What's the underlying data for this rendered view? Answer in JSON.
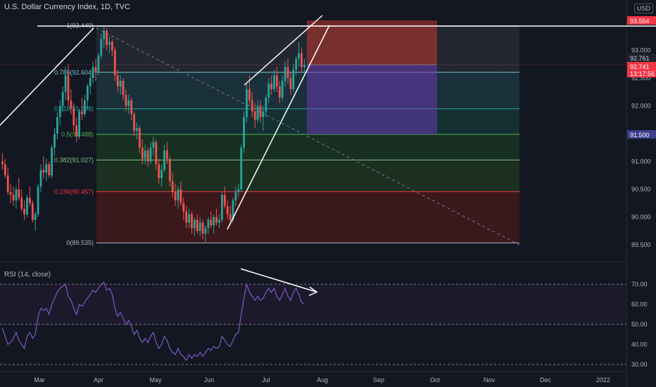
{
  "header": {
    "title": "U.S. Dollar Currency Index, 1D, TVC",
    "currency": "USD"
  },
  "rsi": {
    "title": "RSI (14, close)",
    "levels": [
      "70.00",
      "60.00",
      "50.00",
      "40.00",
      "30.00"
    ]
  },
  "price_axis": {
    "ticks": [
      "93.000",
      "92.500",
      "92.000",
      "91.500",
      "91.000",
      "90.500",
      "90.000",
      "89.500"
    ],
    "labels": {
      "top": "93.554",
      "upper": "92.761",
      "last": "92.741",
      "countdown": "13:17:56",
      "mid": "91.500"
    }
  },
  "time_axis": {
    "labels": [
      "Mar",
      "Apr",
      "May",
      "Jun",
      "Jul",
      "Aug",
      "Sep",
      "Oct",
      "Nov",
      "Dec",
      "2022"
    ]
  },
  "fib_levels": [
    {
      "ratio": "1",
      "price": "93.440",
      "label": "1(93.440)",
      "value": 93.44,
      "color": "#b2b5be"
    },
    {
      "ratio": "0.786",
      "price": "92.604",
      "label": "0.786(92.604)",
      "value": 92.604,
      "color": "#7ec4cf"
    },
    {
      "ratio": "0.618",
      "price": "91.948",
      "label": "0.618(91.948)",
      "value": 91.948,
      "color": "#26a69a"
    },
    {
      "ratio": "0.5",
      "price": "91.488",
      "label": "0.5(91.488)",
      "value": 91.488,
      "color": "#4caf50"
    },
    {
      "ratio": "0.382",
      "price": "91.027",
      "label": "0.382(91.027)",
      "value": 91.027,
      "color": "#81c784"
    },
    {
      "ratio": "0.236",
      "price": "90.457",
      "label": "0.236(90.457)",
      "value": 90.457,
      "color": "#f23645"
    },
    {
      "ratio": "0",
      "price": "89.535",
      "label": "0(89.535)",
      "value": 89.535,
      "color": "#b2b5be"
    }
  ],
  "colors": {
    "background": "#131722",
    "up": "#26a69a",
    "down": "#ef5350",
    "stop_zone": "#c0392b",
    "target_zone": "#6a3ab2",
    "rsi_line": "#7e57c2",
    "rsi_band": "#1e1a2e"
  },
  "chart_data": {
    "type": "candlestick",
    "symbol": "U.S. Dollar Currency Index",
    "interval": "1D",
    "ylim": [
      89.3,
      93.75
    ],
    "ohlc": [
      [
        91.0,
        91.15,
        90.85,
        90.95
      ],
      [
        90.95,
        91.05,
        90.7,
        90.75
      ],
      [
        90.75,
        90.9,
        90.4,
        90.45
      ],
      [
        90.45,
        90.6,
        90.25,
        90.4
      ],
      [
        90.4,
        90.55,
        90.2,
        90.3
      ],
      [
        90.3,
        90.55,
        90.15,
        90.5
      ],
      [
        90.5,
        90.7,
        90.3,
        90.35
      ],
      [
        90.35,
        90.5,
        90.1,
        90.15
      ],
      [
        90.15,
        90.3,
        89.95,
        90.05
      ],
      [
        90.05,
        90.4,
        90.0,
        90.35
      ],
      [
        90.35,
        90.55,
        90.2,
        90.25
      ],
      [
        90.25,
        90.3,
        89.9,
        89.95
      ],
      [
        89.95,
        90.1,
        89.75,
        90.05
      ],
      [
        90.05,
        90.6,
        90.0,
        90.55
      ],
      [
        90.55,
        90.95,
        90.45,
        90.85
      ],
      [
        90.85,
        91.1,
        90.7,
        90.8
      ],
      [
        90.8,
        91.05,
        90.65,
        90.95
      ],
      [
        90.95,
        91.0,
        90.7,
        90.75
      ],
      [
        90.75,
        91.3,
        90.7,
        91.25
      ],
      [
        91.25,
        91.6,
        91.1,
        91.5
      ],
      [
        91.5,
        91.9,
        91.4,
        91.8
      ],
      [
        91.8,
        92.1,
        91.65,
        92.0
      ],
      [
        92.0,
        92.35,
        91.9,
        92.25
      ],
      [
        92.25,
        92.7,
        92.1,
        92.55
      ],
      [
        92.55,
        92.75,
        92.0,
        92.1
      ],
      [
        92.1,
        92.3,
        91.85,
        91.95
      ],
      [
        91.95,
        92.05,
        91.55,
        91.65
      ],
      [
        91.65,
        91.8,
        91.35,
        91.45
      ],
      [
        91.45,
        91.95,
        91.4,
        91.9
      ],
      [
        91.9,
        92.15,
        91.75,
        91.85
      ],
      [
        91.85,
        92.2,
        91.8,
        92.1
      ],
      [
        92.1,
        92.4,
        91.95,
        92.35
      ],
      [
        92.35,
        92.6,
        92.2,
        92.5
      ],
      [
        92.5,
        92.8,
        92.4,
        92.7
      ],
      [
        92.7,
        92.85,
        92.45,
        92.6
      ],
      [
        92.6,
        92.95,
        92.55,
        92.9
      ],
      [
        92.9,
        93.3,
        92.85,
        93.2
      ],
      [
        93.2,
        93.44,
        93.05,
        93.35
      ],
      [
        93.35,
        93.4,
        93.0,
        93.1
      ],
      [
        93.1,
        93.25,
        92.95,
        93.15
      ],
      [
        93.15,
        93.2,
        92.9,
        93.0
      ],
      [
        93.0,
        93.05,
        92.45,
        92.55
      ],
      [
        92.55,
        92.65,
        92.25,
        92.35
      ],
      [
        92.35,
        92.55,
        92.2,
        92.45
      ],
      [
        92.45,
        92.5,
        92.1,
        92.2
      ],
      [
        92.2,
        92.3,
        91.9,
        92.0
      ],
      [
        92.0,
        92.2,
        91.85,
        92.1
      ],
      [
        92.1,
        92.15,
        91.75,
        91.85
      ],
      [
        91.85,
        91.9,
        91.45,
        91.55
      ],
      [
        91.55,
        91.7,
        91.4,
        91.6
      ],
      [
        91.6,
        91.65,
        91.15,
        91.25
      ],
      [
        91.25,
        91.4,
        90.95,
        91.05
      ],
      [
        91.05,
        91.3,
        90.95,
        91.2
      ],
      [
        91.2,
        91.25,
        90.9,
        91.0
      ],
      [
        91.0,
        91.35,
        90.95,
        91.25
      ],
      [
        91.25,
        91.45,
        91.1,
        91.35
      ],
      [
        91.35,
        91.4,
        90.85,
        90.95
      ],
      [
        90.95,
        91.05,
        90.6,
        90.7
      ],
      [
        90.7,
        90.95,
        90.55,
        90.85
      ],
      [
        90.85,
        91.3,
        90.8,
        91.2
      ],
      [
        91.2,
        91.35,
        90.95,
        91.05
      ],
      [
        91.05,
        91.1,
        90.55,
        90.65
      ],
      [
        90.65,
        90.8,
        90.35,
        90.45
      ],
      [
        90.45,
        90.6,
        90.2,
        90.3
      ],
      [
        90.3,
        90.55,
        90.15,
        90.5
      ],
      [
        90.5,
        90.65,
        90.2,
        90.25
      ],
      [
        90.25,
        90.35,
        89.95,
        90.1
      ],
      [
        90.1,
        90.2,
        89.8,
        89.9
      ],
      [
        89.9,
        90.15,
        89.8,
        90.05
      ],
      [
        90.05,
        90.1,
        89.7,
        89.8
      ],
      [
        89.8,
        90.0,
        89.65,
        89.95
      ],
      [
        89.95,
        90.05,
        89.7,
        89.75
      ],
      [
        89.75,
        90.0,
        89.65,
        89.9
      ],
      [
        89.9,
        89.95,
        89.6,
        89.7
      ],
      [
        89.7,
        89.85,
        89.55,
        89.8
      ],
      [
        89.8,
        90.0,
        89.7,
        89.95
      ],
      [
        89.95,
        90.1,
        89.8,
        89.85
      ],
      [
        89.85,
        90.05,
        89.7,
        90.0
      ],
      [
        90.0,
        90.15,
        89.85,
        89.9
      ],
      [
        89.9,
        90.05,
        89.8,
        89.95
      ],
      [
        89.95,
        90.45,
        89.9,
        90.4
      ],
      [
        90.4,
        90.55,
        90.15,
        90.2
      ],
      [
        90.2,
        90.3,
        89.95,
        90.05
      ],
      [
        90.05,
        90.2,
        89.85,
        89.95
      ],
      [
        89.95,
        90.35,
        89.9,
        90.3
      ],
      [
        90.3,
        90.55,
        90.2,
        90.45
      ],
      [
        90.45,
        90.6,
        90.35,
        90.5
      ],
      [
        90.5,
        91.3,
        90.45,
        91.25
      ],
      [
        91.25,
        91.9,
        91.15,
        91.8
      ],
      [
        91.8,
        92.4,
        91.7,
        92.3
      ],
      [
        92.3,
        92.55,
        92.0,
        92.1
      ],
      [
        92.1,
        92.25,
        91.8,
        91.9
      ],
      [
        91.9,
        92.05,
        91.6,
        91.75
      ],
      [
        91.75,
        92.1,
        91.7,
        92.0
      ],
      [
        92.0,
        92.1,
        91.7,
        91.8
      ],
      [
        91.8,
        92.0,
        91.55,
        91.9
      ],
      [
        91.9,
        92.2,
        91.8,
        92.15
      ],
      [
        92.15,
        92.5,
        92.05,
        92.4
      ],
      [
        92.4,
        92.55,
        92.2,
        92.3
      ],
      [
        92.3,
        92.65,
        92.25,
        92.55
      ],
      [
        92.55,
        92.7,
        92.25,
        92.35
      ],
      [
        92.35,
        92.45,
        92.05,
        92.15
      ],
      [
        92.15,
        92.55,
        92.1,
        92.45
      ],
      [
        92.45,
        92.8,
        92.35,
        92.7
      ],
      [
        92.7,
        92.85,
        92.4,
        92.5
      ],
      [
        92.5,
        92.6,
        92.2,
        92.3
      ],
      [
        92.3,
        92.75,
        92.25,
        92.65
      ],
      [
        92.65,
        92.9,
        92.55,
        92.85
      ],
      [
        92.85,
        93.15,
        92.7,
        92.95
      ],
      [
        92.95,
        93.05,
        92.6,
        92.7
      ],
      [
        92.7,
        92.85,
        92.6,
        92.74
      ]
    ],
    "rsi": [
      48,
      44,
      40,
      41,
      43,
      46,
      42,
      40,
      38,
      44,
      46,
      43,
      45,
      54,
      58,
      57,
      58,
      55,
      60,
      63,
      66,
      68,
      69,
      70,
      64,
      62,
      58,
      55,
      60,
      59,
      61,
      63,
      65,
      67,
      66,
      68,
      70,
      71,
      67,
      68,
      65,
      58,
      54,
      56,
      53,
      50,
      52,
      49,
      45,
      47,
      43,
      41,
      43,
      41,
      44,
      46,
      41,
      38,
      40,
      44,
      42,
      38,
      36,
      35,
      38,
      35,
      34,
      32,
      35,
      33,
      35,
      34,
      36,
      34,
      36,
      38,
      37,
      39,
      38,
      39,
      44,
      42,
      40,
      39,
      42,
      45,
      46,
      55,
      63,
      70,
      66,
      64,
      62,
      64,
      62,
      63,
      66,
      68,
      66,
      68,
      64,
      62,
      65,
      68,
      64,
      62,
      66,
      68,
      65,
      61,
      60
    ]
  }
}
